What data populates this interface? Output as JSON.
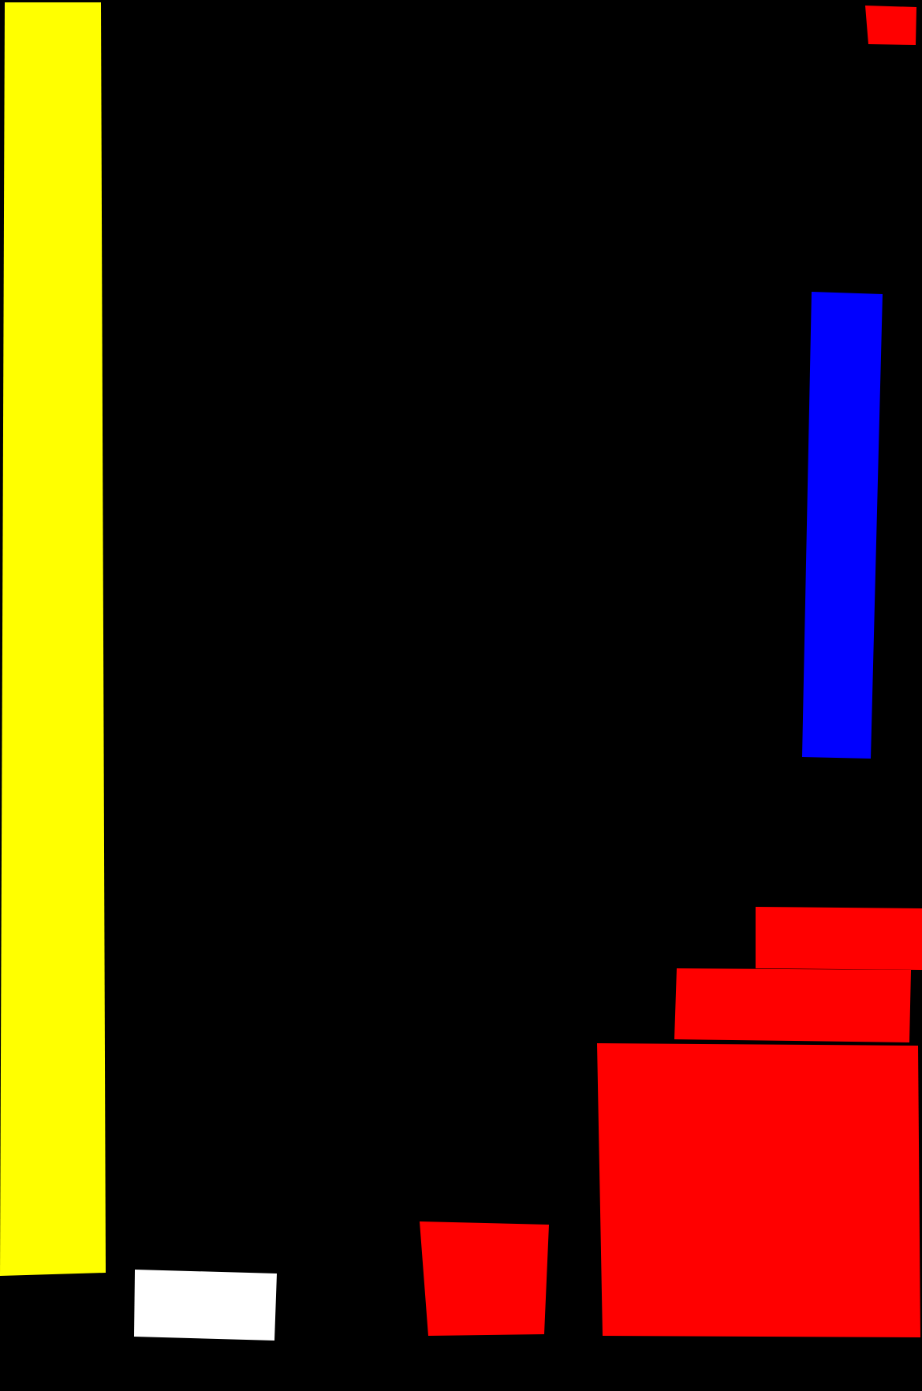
{
  "palette": {
    "background": "#000000",
    "yellow": "#ffff00",
    "blue": "#0000ff",
    "red": "#ff0000",
    "white": "#ffffff"
  },
  "composition": {
    "type": "geometric abstraction",
    "shapes": [
      {
        "name": "yellow-vertical-bar",
        "color": "yellow"
      },
      {
        "name": "small-red-square-top-right",
        "color": "red"
      },
      {
        "name": "blue-vertical-bar",
        "color": "blue"
      },
      {
        "name": "red-block-upper",
        "color": "red"
      },
      {
        "name": "red-block-middle",
        "color": "red"
      },
      {
        "name": "red-large-block",
        "color": "red"
      },
      {
        "name": "red-trapezoid-bottom",
        "color": "red"
      },
      {
        "name": "white-rectangle-bottom",
        "color": "white"
      }
    ]
  }
}
